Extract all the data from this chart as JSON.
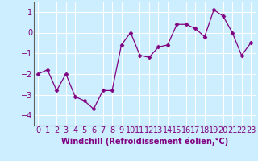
{
  "x": [
    0,
    1,
    2,
    3,
    4,
    5,
    6,
    7,
    8,
    9,
    10,
    11,
    12,
    13,
    14,
    15,
    16,
    17,
    18,
    19,
    20,
    21,
    22,
    23
  ],
  "y": [
    -2.0,
    -1.8,
    -2.8,
    -2.0,
    -3.1,
    -3.3,
    -3.7,
    -2.8,
    -2.8,
    -0.6,
    0.0,
    -1.1,
    -1.2,
    -0.7,
    -0.6,
    0.4,
    0.4,
    0.2,
    -0.2,
    1.1,
    0.8,
    0.0,
    -1.1,
    -0.5
  ],
  "line_color": "#800080",
  "marker": "D",
  "marker_size": 2.5,
  "background_color": "#cceeff",
  "grid_color": "#ffffff",
  "xlabel": "Windchill (Refroidissement éolien,°C)",
  "xlabel_color": "#800080",
  "tick_color": "#800080",
  "spine_color": "#606060",
  "ylim": [
    -4.5,
    1.5
  ],
  "yticks": [
    -4,
    -3,
    -2,
    -1,
    0,
    1
  ],
  "xlim": [
    -0.5,
    23.5
  ],
  "xticks": [
    0,
    1,
    2,
    3,
    4,
    5,
    6,
    7,
    8,
    9,
    10,
    11,
    12,
    13,
    14,
    15,
    16,
    17,
    18,
    19,
    20,
    21,
    22,
    23
  ],
  "tick_fontsize": 7,
  "xlabel_fontsize": 7
}
